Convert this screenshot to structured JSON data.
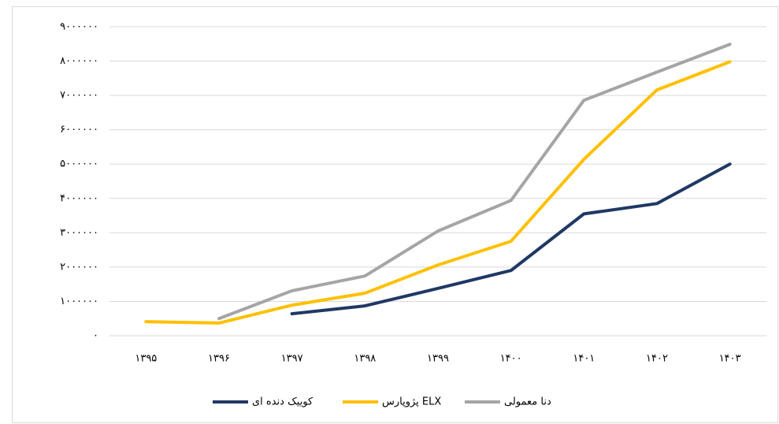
{
  "chart_data": {
    "type": "line",
    "categories": [
      "۱۳۹۵",
      "۱۳۹۶",
      "۱۳۹۷",
      "۱۳۹۸",
      "۱۳۹۹",
      "۱۴۰۰",
      "۱۴۰۱",
      "۱۴۰۲",
      "۱۴۰۳"
    ],
    "series": [
      {
        "name": "کوییک دنده ای",
        "color": "#203864",
        "values": [
          null,
          null,
          640000,
          870000,
          1380000,
          1900000,
          3550000,
          3850000,
          5000000
        ]
      },
      {
        "name": "پژوپارس ELX",
        "color": "#ffc000",
        "values": [
          410000,
          370000,
          890000,
          1240000,
          2060000,
          2750000,
          5140000,
          7160000,
          7980000
        ]
      },
      {
        "name": "دنا معمولی",
        "color": "#a5a5a5",
        "values": [
          null,
          500000,
          1310000,
          1740000,
          3050000,
          3940000,
          6860000,
          7680000,
          8490000
        ]
      }
    ],
    "ylim": [
      0,
      9000000
    ],
    "yticks": [
      {
        "value": 0,
        "label": "۰"
      },
      {
        "value": 1000000,
        "label": "۱۰۰۰۰۰۰"
      },
      {
        "value": 2000000,
        "label": "۲۰۰۰۰۰۰"
      },
      {
        "value": 3000000,
        "label": "۳۰۰۰۰۰۰"
      },
      {
        "value": 4000000,
        "label": "۴۰۰۰۰۰۰"
      },
      {
        "value": 5000000,
        "label": "۵۰۰۰۰۰۰"
      },
      {
        "value": 6000000,
        "label": "۶۰۰۰۰۰۰"
      },
      {
        "value": 7000000,
        "label": "۷۰۰۰۰۰۰"
      },
      {
        "value": 8000000,
        "label": "۸۰۰۰۰۰۰"
      },
      {
        "value": 9000000,
        "label": "۹۰۰۰۰۰۰"
      }
    ],
    "grid": true,
    "legend": "bottom"
  }
}
